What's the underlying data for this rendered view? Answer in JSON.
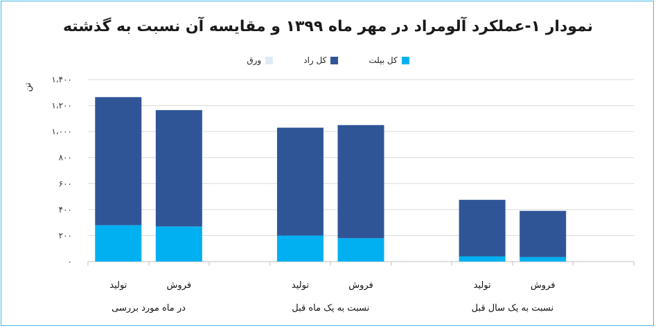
{
  "chart_data": {
    "type": "bar",
    "stacked": true,
    "title": "نمودار ۱-عملکرد آلومراد در مهر ماه ۱۳۹۹ و مقایسه آن نسبت به گذشته",
    "ylabel": "تن",
    "ylim": [
      0,
      1400
    ],
    "yticks": [
      0,
      200,
      400,
      600,
      800,
      1000,
      1200,
      1400
    ],
    "ytick_labels": [
      "۰",
      "۲۰۰",
      "۴۰۰",
      "۶۰۰",
      "۸۰۰",
      "۱،۰۰۰",
      "۱،۲۰۰",
      "۱،۴۰۰"
    ],
    "grid": true,
    "legend_position": "top-center",
    "groups": [
      {
        "label": "در ماه مورد بررسی",
        "categories": [
          "تولید",
          "فروش"
        ]
      },
      {
        "label": "نسبت به یک ماه قبل",
        "categories": [
          "تولید",
          "فروش"
        ]
      },
      {
        "label": "نسبت به یک سال قبل",
        "categories": [
          "تولید",
          "فروش"
        ]
      }
    ],
    "series": [
      {
        "name": "کل بیلت",
        "color": "#00B0F0",
        "values": [
          280,
          270,
          200,
          180,
          40,
          35
        ]
      },
      {
        "name": "کل راد",
        "color": "#2F5597",
        "values": [
          985,
          895,
          830,
          870,
          435,
          355
        ]
      },
      {
        "name": "ورق",
        "color": "#DEEBF7",
        "values": [
          0,
          0,
          0,
          0,
          0,
          0
        ]
      }
    ]
  }
}
